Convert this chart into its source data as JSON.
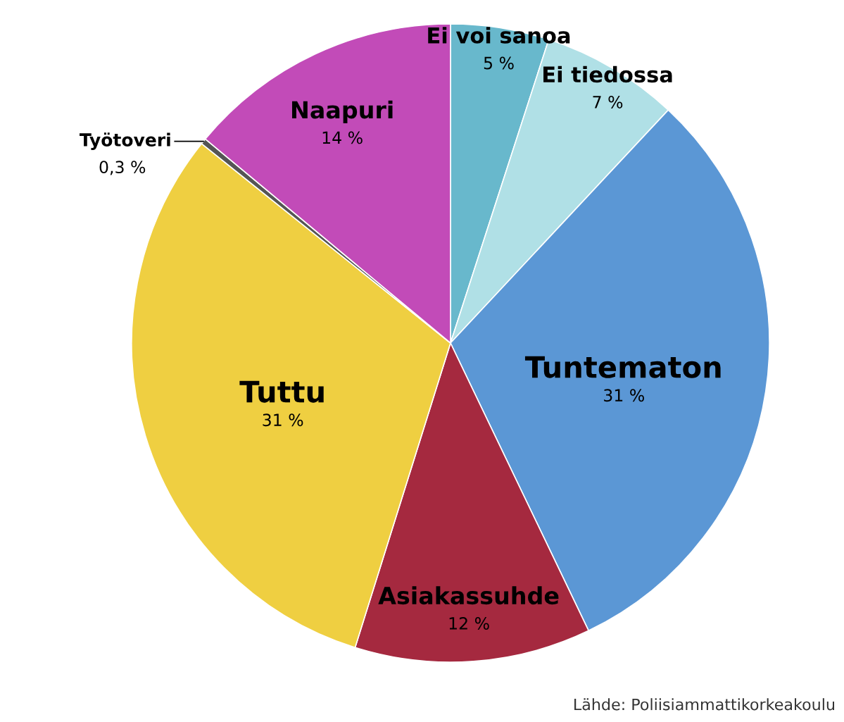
{
  "chart_data": {
    "type": "pie",
    "categories": [
      "Ei voi sanoa",
      "Ei tiedossa",
      "Tuntematon",
      "Asiakassuhde",
      "Tuttu",
      "Työtoveri",
      "Naapuri"
    ],
    "values": [
      5,
      7,
      31,
      12,
      31,
      0.3,
      14
    ],
    "value_labels": [
      "5 %",
      "7 %",
      "31 %",
      "12 %",
      "31 %",
      "0,3 %",
      "14 %"
    ],
    "colors": [
      "#68b8cc",
      "#b0e0e6",
      "#5b97d5",
      "#a5293f",
      "#efcf41",
      "#555555",
      "#c24bb8"
    ],
    "annotations": [
      "Lähde: Poliisiammattikorkeakoulu"
    ]
  }
}
